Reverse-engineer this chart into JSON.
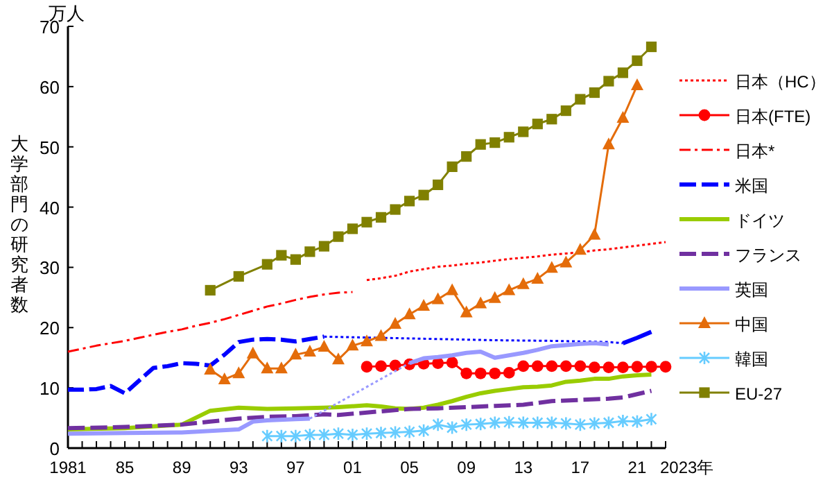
{
  "chart_data": {
    "type": "line",
    "ylabel": "大学部門の研究者数",
    "annotations": [
      "万人"
    ],
    "xlim": [
      1981,
      2023
    ],
    "ylim": [
      0,
      70
    ],
    "xticks": [
      {
        "value": 1981,
        "label": "1981"
      },
      {
        "value": 1982,
        "label": null
      },
      {
        "value": 1983,
        "label": null
      },
      {
        "value": 1984,
        "label": null
      },
      {
        "value": 1985,
        "label": "85"
      },
      {
        "value": 1986,
        "label": null
      },
      {
        "value": 1987,
        "label": null
      },
      {
        "value": 1988,
        "label": null
      },
      {
        "value": 1989,
        "label": "89"
      },
      {
        "value": 1990,
        "label": null
      },
      {
        "value": 1991,
        "label": null
      },
      {
        "value": 1992,
        "label": null
      },
      {
        "value": 1993,
        "label": "93"
      },
      {
        "value": 1994,
        "label": null
      },
      {
        "value": 1995,
        "label": null
      },
      {
        "value": 1996,
        "label": null
      },
      {
        "value": 1997,
        "label": "97"
      },
      {
        "value": 1998,
        "label": null
      },
      {
        "value": 1999,
        "label": null
      },
      {
        "value": 2000,
        "label": null
      },
      {
        "value": 2001,
        "label": "01"
      },
      {
        "value": 2002,
        "label": null
      },
      {
        "value": 2003,
        "label": null
      },
      {
        "value": 2004,
        "label": null
      },
      {
        "value": 2005,
        "label": "05"
      },
      {
        "value": 2006,
        "label": null
      },
      {
        "value": 2007,
        "label": null
      },
      {
        "value": 2008,
        "label": null
      },
      {
        "value": 2009,
        "label": "09"
      },
      {
        "value": 2010,
        "label": null
      },
      {
        "value": 2011,
        "label": null
      },
      {
        "value": 2012,
        "label": null
      },
      {
        "value": 2013,
        "label": "13"
      },
      {
        "value": 2014,
        "label": null
      },
      {
        "value": 2015,
        "label": null
      },
      {
        "value": 2016,
        "label": null
      },
      {
        "value": 2017,
        "label": "17"
      },
      {
        "value": 2018,
        "label": null
      },
      {
        "value": 2019,
        "label": null
      },
      {
        "value": 2020,
        "label": null
      },
      {
        "value": 2021,
        "label": "21"
      },
      {
        "value": 2022,
        "label": null
      },
      {
        "value": 2023,
        "label": null
      }
    ],
    "xlabel": "2023年",
    "yticks": [
      0,
      10,
      20,
      30,
      40,
      50,
      60,
      70
    ],
    "grid": false,
    "legend": "right",
    "series": [
      {
        "name": "日本（HC）",
        "color": "#ff0000",
        "line_style": "dotted",
        "marker": "none",
        "x": [
          2002,
          2003,
          2004,
          2005,
          2006,
          2007,
          2008,
          2009,
          2010,
          2011,
          2012,
          2013,
          2014,
          2015,
          2016,
          2017,
          2018,
          2019,
          2020,
          2021,
          2022,
          2023
        ],
        "values": [
          27.9,
          28.2,
          28.6,
          29.3,
          29.7,
          30.1,
          30.3,
          30.6,
          30.8,
          31.1,
          31.4,
          31.6,
          31.8,
          32.1,
          32.3,
          32.5,
          32.8,
          33.0,
          33.3,
          33.6,
          33.9,
          34.2
        ]
      },
      {
        "name": "日本(FTE)",
        "color": "#ff0000",
        "line_style": "solid",
        "marker": "circle",
        "x": [
          2002,
          2003,
          2004,
          2005,
          2006,
          2007,
          2008,
          2009,
          2010,
          2011,
          2012,
          2013,
          2014,
          2015,
          2016,
          2017,
          2018,
          2019,
          2020,
          2021,
          2022,
          2023
        ],
        "values": [
          13.5,
          13.6,
          13.7,
          13.9,
          14.0,
          14.1,
          14.2,
          12.4,
          12.4,
          12.4,
          12.5,
          13.6,
          13.6,
          13.6,
          13.6,
          13.6,
          13.4,
          13.4,
          13.4,
          13.5,
          13.5,
          13.5
        ]
      },
      {
        "name": "日本*",
        "color": "#ff0000",
        "line_style": "dashdot",
        "marker": "none",
        "x": [
          1981,
          1982,
          1983,
          1984,
          1985,
          1986,
          1987,
          1988,
          1989,
          1990,
          1991,
          1992,
          1993,
          1994,
          1995,
          1996,
          1997,
          1998,
          1999,
          2000,
          2001
        ],
        "values": [
          16.0,
          16.5,
          17.0,
          17.4,
          17.8,
          18.3,
          18.8,
          19.3,
          19.7,
          20.3,
          20.8,
          21.4,
          22.1,
          22.8,
          23.5,
          24.0,
          24.6,
          25.1,
          25.5,
          25.8,
          25.9
        ]
      },
      {
        "name": "米国",
        "color": "#0000ff",
        "line_style": "dashed",
        "marker": "none",
        "x": [
          1981,
          1982,
          1983,
          1984,
          1985,
          1986,
          1987,
          1988,
          1989,
          1990,
          1991,
          1992,
          1993,
          1994,
          1995,
          1996,
          1997,
          1998,
          1999
        ],
        "values": [
          9.7,
          9.7,
          9.8,
          10.3,
          9.1,
          11.2,
          13.3,
          13.6,
          14.1,
          14.0,
          13.7,
          15.5,
          17.6,
          18.0,
          18.1,
          18.0,
          17.7,
          18.1,
          18.5
        ]
      },
      {
        "color": "#0000ff",
        "line_style": "dotted",
        "marker": "none",
        "x": [
          1999,
          2003,
          2007,
          2011,
          2015,
          2019,
          2020
        ],
        "values": [
          18.5,
          18.3,
          18.1,
          17.9,
          17.8,
          17.6,
          17.4
        ]
      },
      {
        "color": "#0000ff",
        "line_style": "solid",
        "marker": "none",
        "x": [
          2020,
          2021,
          2022
        ],
        "values": [
          17.4,
          18.3,
          19.3
        ]
      },
      {
        "name": "ドイツ",
        "color": "#99cc00",
        "line_style": "solid",
        "marker": "none",
        "x": [
          1981,
          1985,
          1989,
          1991,
          1993,
          1995,
          1997,
          1999,
          2000,
          2002,
          2003,
          2004,
          2005,
          2006,
          2007,
          2008,
          2009,
          2010,
          2011,
          2012,
          2013,
          2014,
          2015,
          2016,
          2017,
          2018,
          2019,
          2020,
          2021,
          2022
        ],
        "values": [
          3.1,
          3.3,
          3.9,
          6.2,
          6.7,
          6.5,
          6.6,
          6.7,
          6.8,
          7.1,
          6.9,
          6.6,
          6.5,
          6.7,
          7.2,
          7.8,
          8.5,
          9.1,
          9.5,
          9.8,
          10.1,
          10.2,
          10.4,
          11.0,
          11.2,
          11.5,
          11.5,
          11.9,
          12.1,
          12.2
        ]
      },
      {
        "name": "フランス",
        "color": "#7030a0",
        "line_style": "dashed",
        "marker": "none",
        "x": [
          1981,
          1985,
          1989,
          1991,
          1993,
          1995,
          1997,
          1999,
          2000,
          2005,
          2007,
          2009,
          2011,
          2013,
          2015,
          2017,
          2019,
          2020,
          2022
        ],
        "values": [
          3.3,
          3.5,
          3.9,
          4.4,
          4.9,
          5.2,
          5.3,
          5.6,
          5.5,
          6.5,
          6.6,
          6.8,
          7.0,
          7.2,
          7.8,
          8.0,
          8.2,
          8.4,
          9.5
        ]
      },
      {
        "name": "英国",
        "color": "#9999ff",
        "line_style": "solid",
        "marker": "none",
        "x": [
          1981,
          1985,
          1989,
          1993,
          1994,
          1995,
          1997,
          1998
        ],
        "values": [
          2.4,
          2.5,
          2.6,
          3.1,
          4.4,
          4.6,
          4.8,
          4.9
        ]
      },
      {
        "color": "#9999ff",
        "line_style": "dotted",
        "marker": "none",
        "x": [
          1998,
          2005
        ],
        "values": [
          4.9,
          14.1
        ]
      },
      {
        "color": "#9999ff",
        "line_style": "solid",
        "marker": "none",
        "x": [
          2005,
          2006,
          2007,
          2008,
          2009,
          2010,
          2011,
          2012,
          2013,
          2014,
          2015,
          2016,
          2017,
          2018,
          2019
        ],
        "values": [
          14.1,
          14.9,
          15.1,
          15.4,
          15.8,
          16.0,
          15.0,
          15.4,
          15.8,
          16.3,
          16.9,
          17.1,
          17.3,
          17.4,
          17.2
        ]
      },
      {
        "name": "中国",
        "color": "#e46c0a",
        "line_style": "solid",
        "marker": "triangle",
        "x": [
          1991,
          1992,
          1993,
          1994,
          1995,
          1996,
          1997,
          1998,
          1999,
          2000,
          2001,
          2002,
          2003,
          2004,
          2005,
          2006,
          2007,
          2008,
          2009,
          2010,
          2011,
          2012,
          2013,
          2014,
          2015,
          2016,
          2017,
          2018,
          2019,
          2020,
          2021
        ],
        "values": [
          13.0,
          11.4,
          12.4,
          15.7,
          13.2,
          13.2,
          15.5,
          16.0,
          16.8,
          14.7,
          17.0,
          17.7,
          18.6,
          20.6,
          22.2,
          23.6,
          24.7,
          26.2,
          22.5,
          24.0,
          24.9,
          26.2,
          27.2,
          28.1,
          29.9,
          30.8,
          32.9,
          35.4,
          50.4,
          54.8,
          60.2
        ]
      },
      {
        "name": "韓国",
        "color": "#66ccff",
        "line_style": "solid",
        "marker": "cross",
        "x": [
          1995,
          1996,
          1997,
          1998,
          1999,
          2000,
          2001,
          2002,
          2003,
          2004,
          2005,
          2006,
          2007,
          2008,
          2009,
          2010,
          2011,
          2012,
          2013,
          2014,
          2015,
          2016,
          2017,
          2018,
          2019,
          2020,
          2021,
          2022
        ],
        "values": [
          2.0,
          2.0,
          2.0,
          2.2,
          2.2,
          2.4,
          2.2,
          2.4,
          2.5,
          2.6,
          2.7,
          2.9,
          3.9,
          3.4,
          3.9,
          4.0,
          4.2,
          4.3,
          4.2,
          4.2,
          4.2,
          4.1,
          3.9,
          4.1,
          4.2,
          4.5,
          4.4,
          4.8
        ]
      },
      {
        "name": "EU-27",
        "color": "#808000",
        "line_style": "solid",
        "marker": "square",
        "x": [
          1991,
          1993,
          1995,
          1996,
          1997,
          1998,
          1999,
          2000,
          2001,
          2002,
          2003,
          2004,
          2005,
          2006,
          2007,
          2008,
          2009,
          2010,
          2011,
          2012,
          2013,
          2014,
          2015,
          2016,
          2017,
          2018,
          2019,
          2020,
          2021,
          2022
        ],
        "values": [
          26.2,
          28.5,
          30.5,
          32.0,
          31.3,
          32.6,
          33.5,
          35.1,
          36.4,
          37.5,
          38.3,
          39.6,
          41.0,
          42.0,
          43.7,
          46.7,
          48.4,
          50.4,
          50.7,
          51.6,
          52.5,
          53.8,
          54.6,
          56.0,
          57.9,
          59.0,
          60.9,
          62.3,
          64.3,
          66.6
        ]
      }
    ]
  }
}
